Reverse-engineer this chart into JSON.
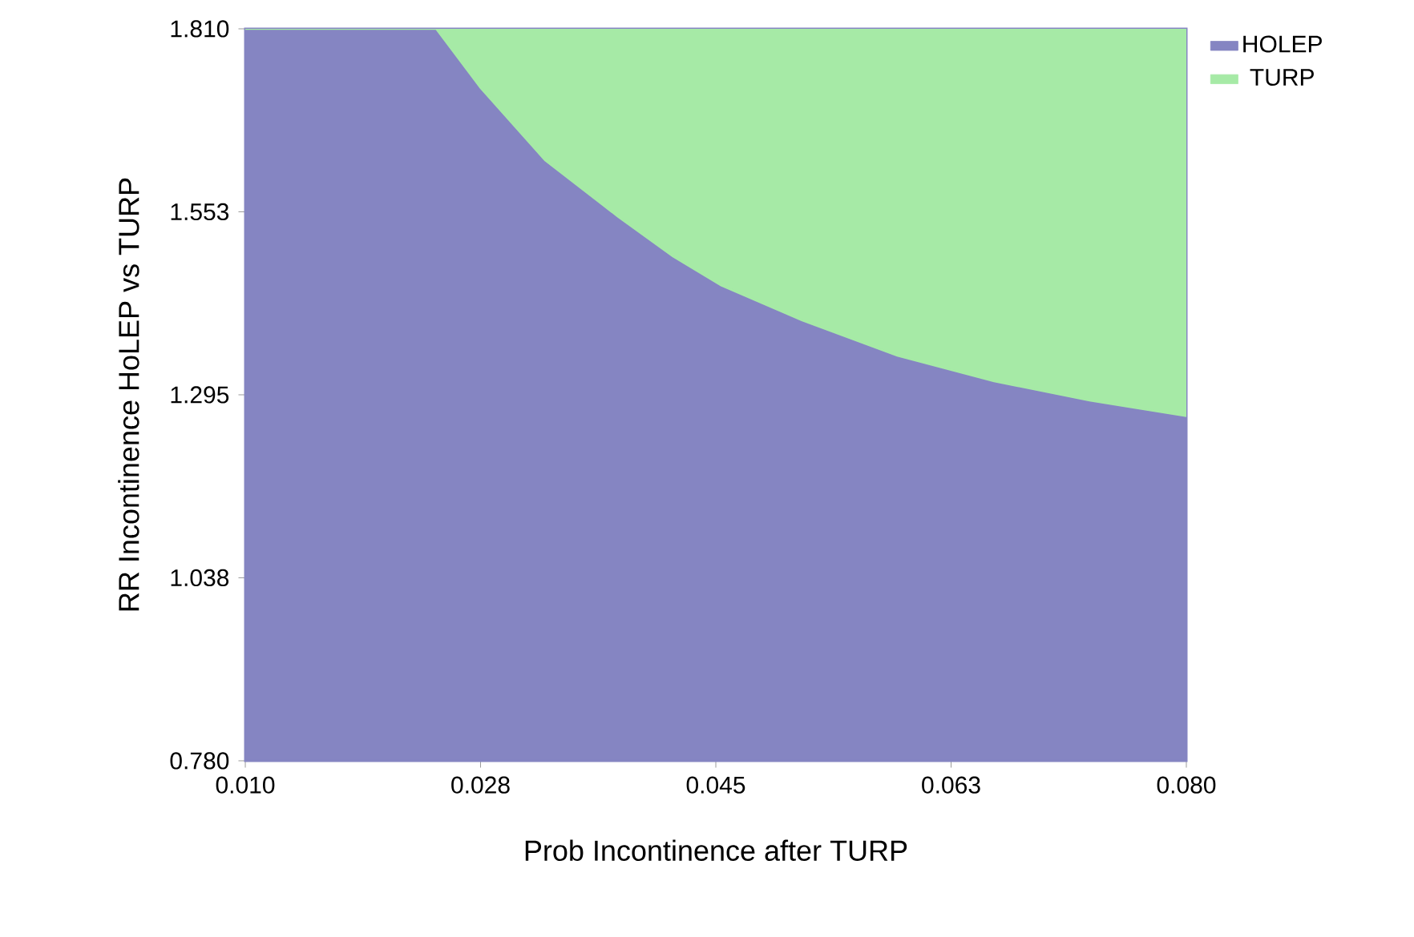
{
  "chart_data": {
    "type": "area",
    "xlabel": "Prob Incontinence after TURP",
    "ylabel": "RR Incontinence HoLEP vs TURP",
    "x": [
      0.01,
      0.0242,
      0.0275,
      0.0323,
      0.0377,
      0.0418,
      0.0454,
      0.0514,
      0.0585,
      0.0657,
      0.0728,
      0.08
    ],
    "series": [
      {
        "name": "HOLEP",
        "color": "#8585c2",
        "values": [
          1.81,
          1.81,
          1.727,
          1.625,
          1.546,
          1.49,
          1.449,
          1.4,
          1.35,
          1.314,
          1.287,
          1.265
        ]
      },
      {
        "name": "TURP",
        "color": "#a6eaa6",
        "values": [
          1.81,
          1.81,
          1.81,
          1.81,
          1.81,
          1.81,
          1.81,
          1.81,
          1.81,
          1.81,
          1.81,
          1.81
        ]
      }
    ],
    "xlim": [
      0.01,
      0.08
    ],
    "ylim": [
      0.78,
      1.81
    ],
    "xticks": [
      {
        "value": 0.01,
        "label": "0.010"
      },
      {
        "value": 0.0275,
        "label": "0.028"
      },
      {
        "value": 0.045,
        "label": "0.045"
      },
      {
        "value": 0.0625,
        "label": "0.063"
      },
      {
        "value": 0.08,
        "label": "0.080"
      }
    ],
    "yticks": [
      {
        "value": 0.78,
        "label": "0.780"
      },
      {
        "value": 1.0375,
        "label": "1.038"
      },
      {
        "value": 1.295,
        "label": "1.295"
      },
      {
        "value": 1.5525,
        "label": "1.553"
      },
      {
        "value": 1.81,
        "label": "1.810"
      }
    ],
    "legend": "top right"
  }
}
